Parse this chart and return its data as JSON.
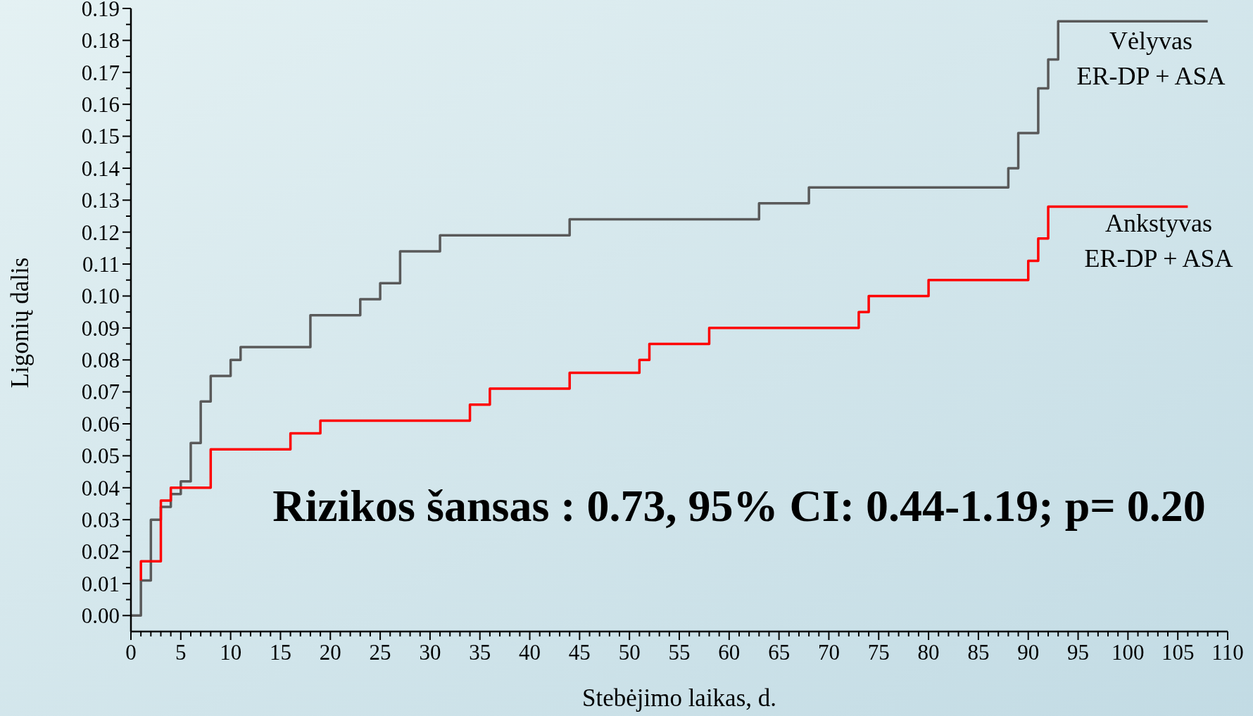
{
  "chart_data": {
    "type": "step",
    "xlabel": "Stebėjimo laikas, d.",
    "ylabel": "Ligonių dalis",
    "xlim": [
      0,
      110
    ],
    "ylim": [
      -0.005,
      0.19
    ],
    "xticks": [
      0,
      5,
      10,
      15,
      20,
      25,
      30,
      35,
      40,
      45,
      50,
      55,
      60,
      65,
      70,
      75,
      80,
      85,
      90,
      95,
      100,
      105,
      110,
      {
        "value": 1,
        "label": null
      },
      {
        "value": 2,
        "label": null
      },
      {
        "value": 3,
        "label": null
      },
      {
        "value": 4,
        "label": null
      },
      {
        "value": 6,
        "label": null
      },
      {
        "value": 7,
        "label": null
      },
      {
        "value": 8,
        "label": null
      },
      {
        "value": 9,
        "label": null
      },
      {
        "value": 11,
        "label": null
      },
      {
        "value": 12,
        "label": null
      },
      {
        "value": 13,
        "label": null
      },
      {
        "value": 14,
        "label": null
      },
      {
        "value": 16,
        "label": null
      },
      {
        "value": 17,
        "label": null
      },
      {
        "value": 18,
        "label": null
      },
      {
        "value": 19,
        "label": null
      },
      {
        "value": 21,
        "label": null
      },
      {
        "value": 22,
        "label": null
      },
      {
        "value": 23,
        "label": null
      },
      {
        "value": 24,
        "label": null
      },
      {
        "value": 26,
        "label": null
      },
      {
        "value": 27,
        "label": null
      },
      {
        "value": 28,
        "label": null
      },
      {
        "value": 29,
        "label": null
      },
      {
        "value": 31,
        "label": null
      },
      {
        "value": 32,
        "label": null
      },
      {
        "value": 33,
        "label": null
      },
      {
        "value": 34,
        "label": null
      },
      {
        "value": 36,
        "label": null
      },
      {
        "value": 37,
        "label": null
      },
      {
        "value": 38,
        "label": null
      },
      {
        "value": 39,
        "label": null
      },
      {
        "value": 41,
        "label": null
      },
      {
        "value": 42,
        "label": null
      },
      {
        "value": 43,
        "label": null
      },
      {
        "value": 44,
        "label": null
      },
      {
        "value": 46,
        "label": null
      },
      {
        "value": 47,
        "label": null
      },
      {
        "value": 48,
        "label": null
      },
      {
        "value": 49,
        "label": null
      },
      {
        "value": 51,
        "label": null
      },
      {
        "value": 52,
        "label": null
      },
      {
        "value": 53,
        "label": null
      },
      {
        "value": 54,
        "label": null
      },
      {
        "value": 56,
        "label": null
      },
      {
        "value": 57,
        "label": null
      },
      {
        "value": 58,
        "label": null
      },
      {
        "value": 59,
        "label": null
      },
      {
        "value": 61,
        "label": null
      },
      {
        "value": 62,
        "label": null
      },
      {
        "value": 63,
        "label": null
      },
      {
        "value": 64,
        "label": null
      },
      {
        "value": 66,
        "label": null
      },
      {
        "value": 67,
        "label": null
      },
      {
        "value": 68,
        "label": null
      },
      {
        "value": 69,
        "label": null
      },
      {
        "value": 71,
        "label": null
      },
      {
        "value": 72,
        "label": null
      },
      {
        "value": 73,
        "label": null
      },
      {
        "value": 74,
        "label": null
      },
      {
        "value": 76,
        "label": null
      },
      {
        "value": 77,
        "label": null
      },
      {
        "value": 78,
        "label": null
      },
      {
        "value": 79,
        "label": null
      },
      {
        "value": 81,
        "label": null
      },
      {
        "value": 82,
        "label": null
      },
      {
        "value": 83,
        "label": null
      },
      {
        "value": 84,
        "label": null
      },
      {
        "value": 86,
        "label": null
      },
      {
        "value": 87,
        "label": null
      },
      {
        "value": 88,
        "label": null
      },
      {
        "value": 89,
        "label": null
      },
      {
        "value": 91,
        "label": null
      },
      {
        "value": 92,
        "label": null
      },
      {
        "value": 93,
        "label": null
      },
      {
        "value": 94,
        "label": null
      },
      {
        "value": 96,
        "label": null
      },
      {
        "value": 97,
        "label": null
      },
      {
        "value": 98,
        "label": null
      },
      {
        "value": 99,
        "label": null
      },
      {
        "value": 101,
        "label": null
      },
      {
        "value": 102,
        "label": null
      },
      {
        "value": 103,
        "label": null
      },
      {
        "value": 104,
        "label": null
      },
      {
        "value": 106,
        "label": null
      },
      {
        "value": 107,
        "label": null
      },
      {
        "value": 108,
        "label": null
      },
      {
        "value": 109,
        "label": null
      }
    ],
    "yticks": [
      {
        "value": 0,
        "label": "0.00"
      },
      {
        "value": 0.01,
        "label": "0.01"
      },
      {
        "value": 0.02,
        "label": "0.02"
      },
      {
        "value": 0.03,
        "label": "0.03"
      },
      {
        "value": 0.04,
        "label": "0.04"
      },
      {
        "value": 0.05,
        "label": "0.05"
      },
      {
        "value": 0.06,
        "label": "0.06"
      },
      {
        "value": 0.07,
        "label": "0.07"
      },
      {
        "value": 0.08,
        "label": "0.08"
      },
      {
        "value": 0.09,
        "label": "0.09"
      },
      {
        "value": 0.1,
        "label": "0.10"
      },
      {
        "value": 0.11,
        "label": "0.11"
      },
      {
        "value": 0.12,
        "label": "0.12"
      },
      {
        "value": 0.13,
        "label": "0.13"
      },
      {
        "value": 0.14,
        "label": "0.14"
      },
      {
        "value": 0.15,
        "label": "0.15"
      },
      {
        "value": 0.16,
        "label": "0.16"
      },
      {
        "value": 0.17,
        "label": "0.17"
      },
      {
        "value": 0.18,
        "label": "0.18"
      },
      {
        "value": 0.19,
        "label": "0.19"
      },
      {
        "value": 0.005,
        "label": null
      },
      {
        "value": 0.015,
        "label": null
      },
      {
        "value": 0.025,
        "label": null
      },
      {
        "value": 0.035,
        "label": null
      },
      {
        "value": 0.045,
        "label": null
      },
      {
        "value": 0.055,
        "label": null
      },
      {
        "value": 0.065,
        "label": null
      },
      {
        "value": 0.075,
        "label": null
      },
      {
        "value": 0.085,
        "label": null
      },
      {
        "value": 0.095,
        "label": null
      },
      {
        "value": 0.105,
        "label": null
      },
      {
        "value": 0.115,
        "label": null
      },
      {
        "value": 0.125,
        "label": null
      },
      {
        "value": 0.135,
        "label": null
      },
      {
        "value": 0.145,
        "label": null
      },
      {
        "value": 0.155,
        "label": null
      },
      {
        "value": 0.165,
        "label": null
      },
      {
        "value": 0.175,
        "label": null
      },
      {
        "value": 0.185,
        "label": null
      }
    ],
    "grid": false,
    "series": [
      {
        "name": "Vėlyvas\nER-DP + ASA",
        "color": "#595959",
        "x": [
          0,
          1,
          2,
          3,
          4,
          5,
          6,
          7,
          8,
          10,
          11,
          18,
          23,
          25,
          27,
          31,
          44,
          63,
          68,
          88,
          89,
          91,
          92,
          93,
          108
        ],
        "values": [
          0,
          0.011,
          0.03,
          0.034,
          0.038,
          0.042,
          0.054,
          0.067,
          0.075,
          0.08,
          0.084,
          0.094,
          0.099,
          0.104,
          0.114,
          0.119,
          0.124,
          0.129,
          0.134,
          0.14,
          0.151,
          0.165,
          0.174,
          0.186,
          0.186
        ]
      },
      {
        "name": "Ankstyvas\nER-DP + ASA",
        "color": "#ff0000",
        "x": [
          1,
          1,
          3,
          4,
          8,
          16,
          19,
          34,
          36,
          44,
          51,
          52,
          58,
          73,
          74,
          80,
          90,
          91,
          92,
          106
        ],
        "values": [
          0.011,
          0.017,
          0.036,
          0.04,
          0.052,
          0.057,
          0.061,
          0.066,
          0.071,
          0.076,
          0.08,
          0.085,
          0.09,
          0.095,
          0.1,
          0.105,
          0.111,
          0.118,
          0.128,
          0.128
        ]
      }
    ],
    "annotations": [
      "Rizikos šansas : 0.73, 95% CI: 0.44-1.19; p= 0.20"
    ]
  }
}
